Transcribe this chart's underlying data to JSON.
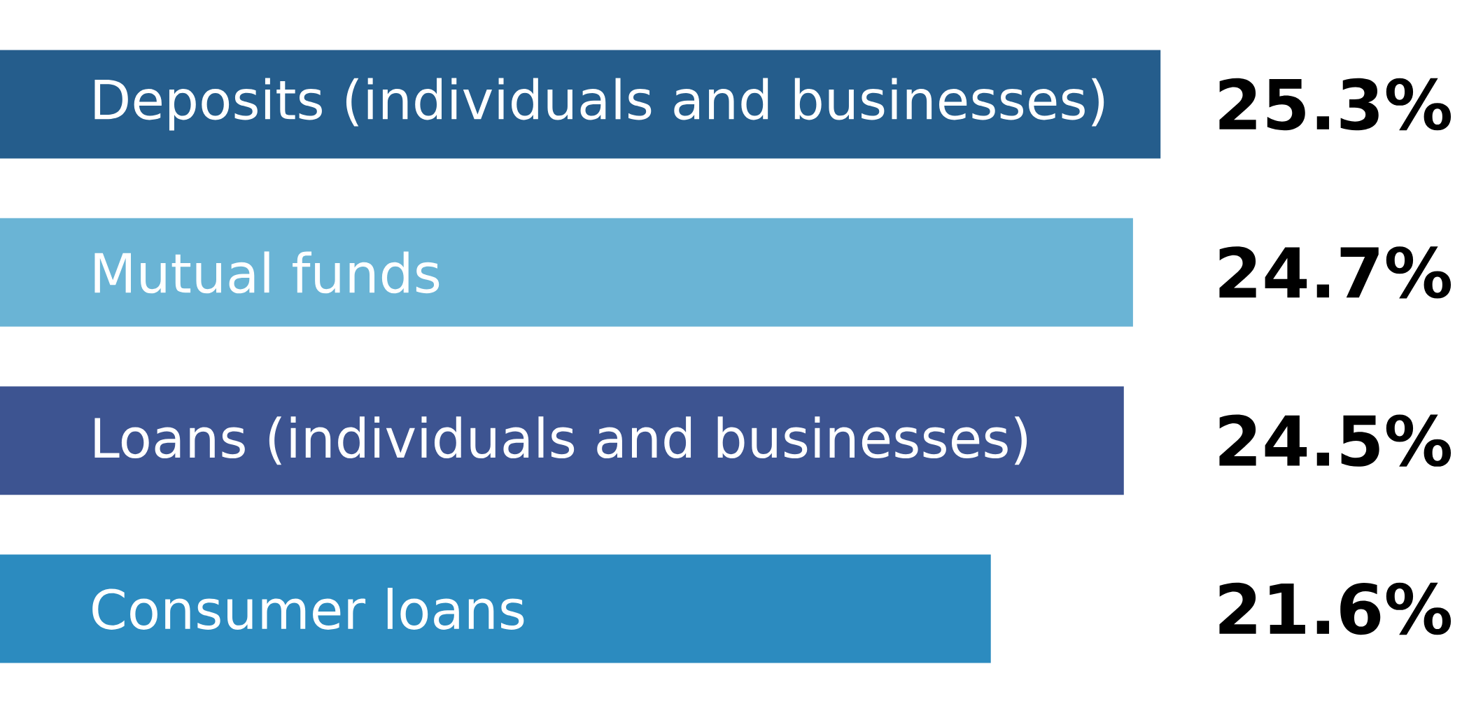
{
  "chart_data": {
    "type": "bar",
    "orientation": "horizontal",
    "data_labels": true,
    "categories": [
      "Deposits (individuals and businesses)",
      "Mutual funds",
      "Loans (individuals and businesses)",
      "Consumer loans"
    ],
    "values": [
      25.3,
      24.7,
      24.5,
      21.6
    ],
    "value_labels": [
      "25.3%",
      "24.7%",
      "24.5%",
      "21.6%"
    ],
    "colors": [
      "#255d8c",
      "#6ab4d5",
      "#3d5491",
      "#2c8bbf"
    ]
  }
}
